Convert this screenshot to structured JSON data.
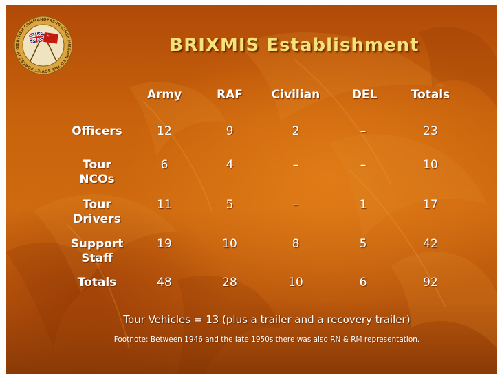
{
  "emblem": {
    "ring_text": "BRITISH COMMANDERS-IN-CHIEF MISSION TO THE SOVIET FORCES IN GERMANY"
  },
  "title": "BRIXMIS Establishment",
  "table": {
    "columns": [
      "Army",
      "RAF",
      "Civilian",
      "DEL",
      "Totals"
    ],
    "rows": [
      {
        "label_lines": [
          "Officers"
        ],
        "values": [
          "12",
          "9",
          "2",
          "–",
          "23"
        ]
      },
      {
        "label_lines": [
          "Tour",
          "NCOs"
        ],
        "values": [
          "6",
          "4",
          "–",
          "–",
          "10"
        ]
      },
      {
        "label_lines": [
          "Tour",
          "Drivers"
        ],
        "values": [
          "11",
          "5",
          "–",
          "1",
          "17"
        ]
      },
      {
        "label_lines": [
          "Support",
          "Staff"
        ],
        "values": [
          "19",
          "10",
          "8",
          "5",
          "42"
        ]
      },
      {
        "label_lines": [
          "Totals"
        ],
        "values": [
          "48",
          "28",
          "10",
          "6",
          "92"
        ]
      }
    ]
  },
  "vehicles_note": "Tour Vehicles  = 13 (plus a trailer and a recovery trailer)",
  "footnote": "Footnote: Between 1946 and the late 1950s there was also RN & RM representation.",
  "colors": {
    "background": "#c8620c",
    "title": "#f6e27a",
    "text": "#ffffff",
    "emblem_gold": "#d9a640",
    "union_blue": "#1d2a6e",
    "soviet_red": "#c41a12"
  }
}
